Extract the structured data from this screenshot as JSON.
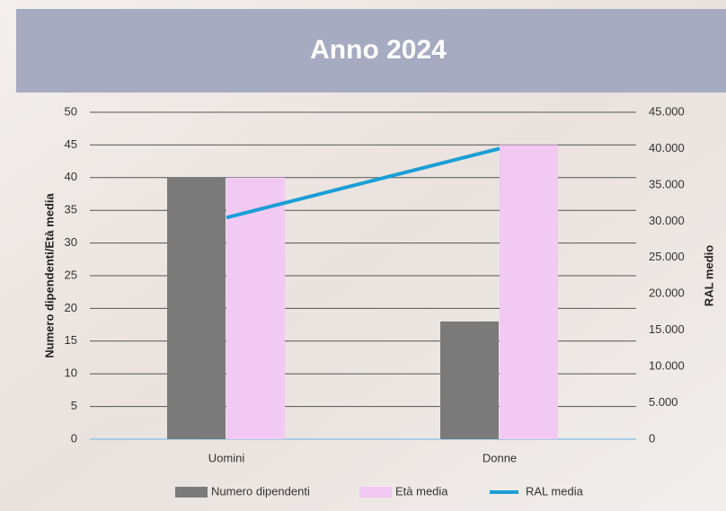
{
  "chart_data": {
    "type": "bar",
    "title": "Anno 2024",
    "categories": [
      "Uomini",
      "Donne"
    ],
    "series": [
      {
        "name": "Numero dipendenti",
        "color": "#7a7a7a",
        "values": [
          40,
          18
        ]
      },
      {
        "name": "Età media",
        "color": "#f2c9f2",
        "values": [
          40,
          45
        ]
      },
      {
        "name": "RAL media",
        "color": "#1a9fd6",
        "type": "line",
        "axis": "y2",
        "values": [
          30500,
          40000
        ]
      }
    ],
    "ylabel": "Numero dipendenti/Età media",
    "y2label": "RAL medio",
    "ylim": [
      0,
      50
    ],
    "yticks": [
      0,
      5,
      10,
      15,
      20,
      25,
      30,
      35,
      40,
      45,
      50
    ],
    "y2lim": [
      0,
      45000
    ],
    "y2ticks": [
      0,
      {
        "value": 5000,
        "label": "5.000"
      },
      {
        "value": 10000,
        "label": "10.000"
      },
      {
        "value": 15000,
        "label": "15.000"
      },
      {
        "value": 20000,
        "label": "20.000"
      },
      {
        "value": 25000,
        "label": "25.000"
      },
      {
        "value": 30000,
        "label": "30.000"
      },
      {
        "value": 35000,
        "label": "35.000"
      },
      {
        "value": 40000,
        "label": "40.000"
      },
      {
        "value": 45000,
        "label": "45.000"
      }
    ],
    "grid": true,
    "legend": "bottom"
  }
}
